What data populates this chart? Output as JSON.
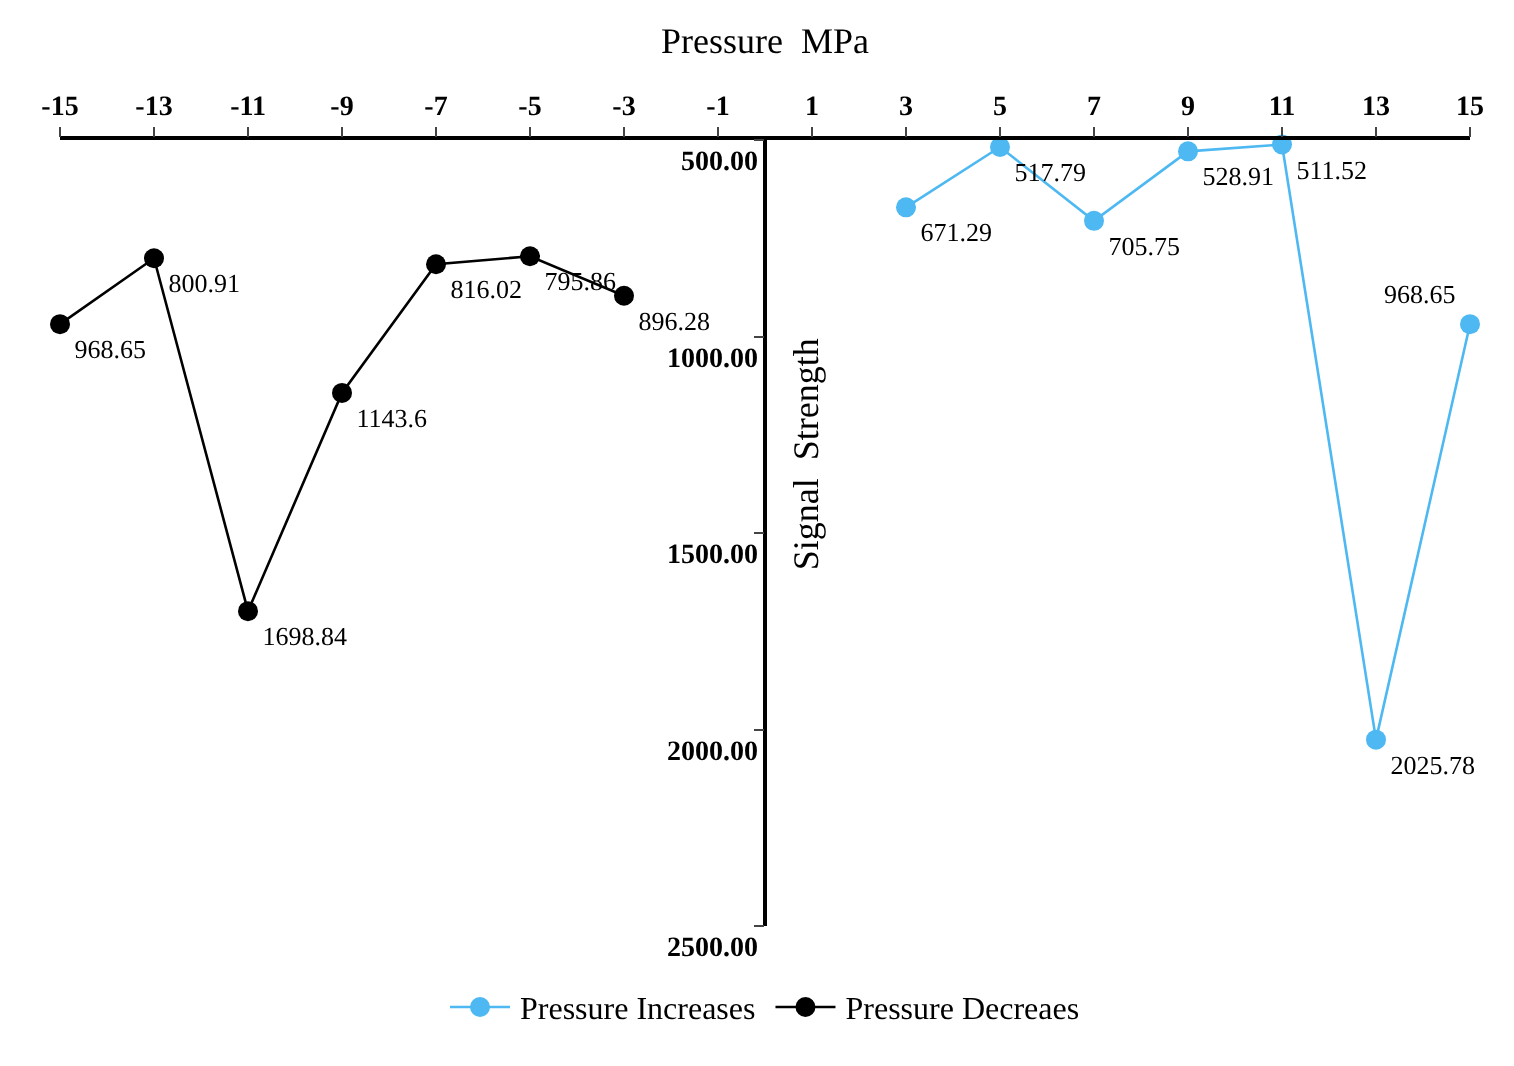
{
  "chart_data": {
    "type": "line",
    "xlabel": "Pressure  MPa",
    "ylabel": "Signal  Strength",
    "series": [
      {
        "name": "Pressure Increases",
        "color": "#4db8f2",
        "x": [
          3,
          5,
          7,
          9,
          11,
          13,
          15
        ],
        "values": [
          671.29,
          517.79,
          705.75,
          528.91,
          511.52,
          2025.78,
          968.65
        ]
      },
      {
        "name": "Pressure Decreaes",
        "color": "#000000",
        "x": [
          -15,
          -13,
          -11,
          -9,
          -7,
          -5,
          -3
        ],
        "values": [
          968.65,
          800.91,
          1698.84,
          1143.6,
          816.02,
          795.86,
          896.28
        ]
      }
    ],
    "xlim": [
      -15,
      15
    ],
    "xticks": [
      -15,
      -13,
      -11,
      -9,
      -7,
      -5,
      -3,
      -1,
      1,
      3,
      5,
      7,
      9,
      11,
      13,
      15
    ],
    "ylim": [
      2500,
      500
    ],
    "yticks": [
      {
        "value": 500,
        "label": "500.00"
      },
      {
        "value": 1000,
        "label": "1000.00"
      },
      {
        "value": 1500,
        "label": "1500.00"
      },
      {
        "value": 2000,
        "label": "2000.00"
      },
      {
        "value": 2500,
        "label": "2500.00"
      }
    ],
    "data_labels": true,
    "marker": "circle",
    "line_style": "solid",
    "legend": "bottom"
  }
}
